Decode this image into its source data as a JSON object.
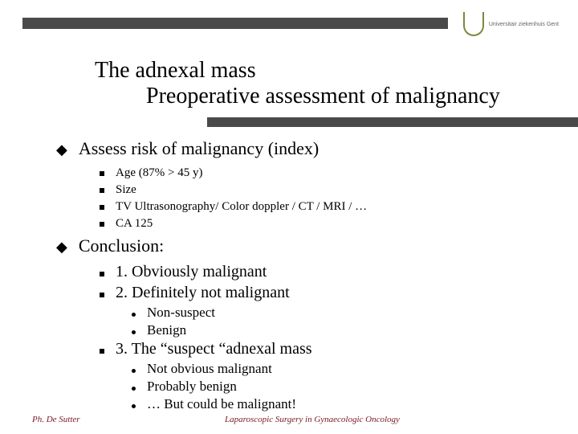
{
  "colors": {
    "bar": "#4a4a4a",
    "text": "#000000",
    "footer": "#7a1820",
    "logo": "#7a8a3a",
    "background": "#ffffff"
  },
  "logo": {
    "text": "Universitair ziekenhuis Gent"
  },
  "title": {
    "line1": "The adnexal mass",
    "line2": "Preoperative assessment of malignancy"
  },
  "body": {
    "item1": {
      "label": "Assess risk of malignancy (index)",
      "sub": [
        "Age (87% > 45 y)",
        "Size",
        "TV Ultrasonography/ Color doppler / CT / MRI / …",
        "CA 125"
      ]
    },
    "item2": {
      "label": "Conclusion:",
      "sub1": {
        "label": "1. Obviously malignant"
      },
      "sub2": {
        "label": "2. Definitely not malignant",
        "sub": [
          "Non-suspect",
          "Benign"
        ]
      },
      "sub3": {
        "label": "3. The “suspect “adnexal mass",
        "sub": [
          "Not obvious malignant",
          "Probably benign",
          "… But could be malignant!"
        ]
      }
    }
  },
  "footer": {
    "left": "Ph. De Sutter",
    "right": "Laparoscopic Surgery in Gynaecologic Oncology"
  }
}
